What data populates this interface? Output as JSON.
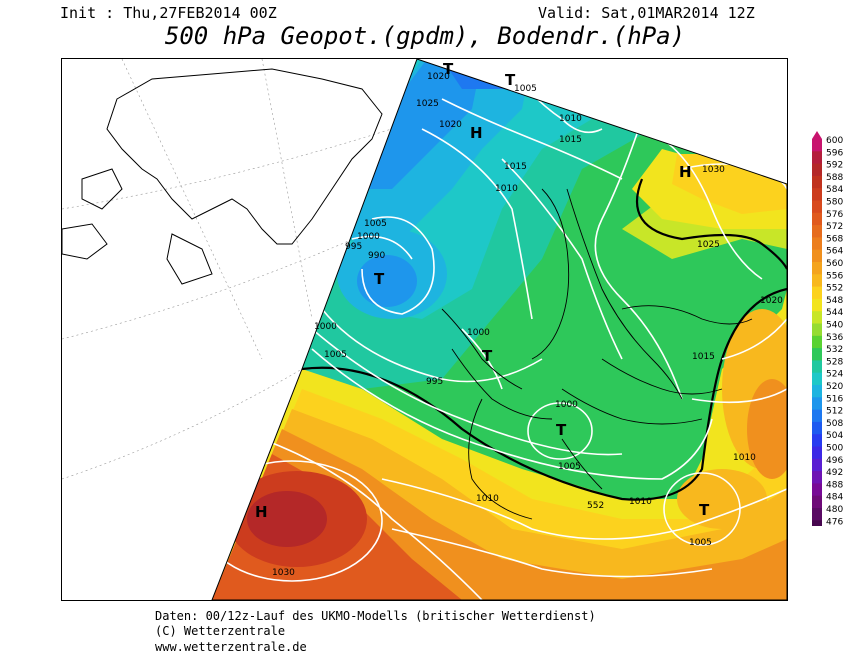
{
  "header": {
    "init": "Init : Thu,27FEB2014 00Z",
    "valid": "Valid: Sat,01MAR2014 12Z",
    "title": "500 hPa Geopot.(gpdm), Bodendr.(hPa)"
  },
  "footer": {
    "line1": "Daten: 00/12z-Lauf des UKMO-Modells (britischer Wetterdienst)",
    "line2": "(C) Wetterzentrale",
    "line3": "www.wetterzentrale.de"
  },
  "legend": {
    "levels": [
      "600",
      "596",
      "592",
      "588",
      "584",
      "580",
      "576",
      "572",
      "568",
      "564",
      "560",
      "556",
      "552",
      "548",
      "544",
      "540",
      "536",
      "532",
      "528",
      "524",
      "520",
      "516",
      "512",
      "508",
      "504",
      "500",
      "496",
      "492",
      "488",
      "484",
      "480",
      "476"
    ],
    "colors": [
      "#c8146e",
      "#b41e3c",
      "#b42828",
      "#c0321e",
      "#cc3c1e",
      "#d84a1e",
      "#e05a1e",
      "#e66c1e",
      "#ec7e1e",
      "#f0901e",
      "#f4a41e",
      "#f8b81e",
      "#fcd21e",
      "#f2e41e",
      "#c8e628",
      "#96dc32",
      "#5ad232",
      "#2ec85a",
      "#20c8a0",
      "#1ec8c8",
      "#1eb4e0",
      "#1e96ec",
      "#1e78f0",
      "#1e5af0",
      "#283cf0",
      "#3c28e6",
      "#5a1ed2",
      "#6e14b4",
      "#780a96",
      "#6e0a78",
      "#5a0a64",
      "#46064e"
    ]
  },
  "pressure_systems": [
    {
      "type": "H",
      "label": "H"
    },
    {
      "type": "H",
      "label": "H"
    },
    {
      "type": "H",
      "label": "H"
    },
    {
      "type": "T",
      "label": "T"
    },
    {
      "type": "T",
      "label": "T"
    },
    {
      "type": "T",
      "label": "T"
    },
    {
      "type": "T",
      "label": "T"
    },
    {
      "type": "T",
      "label": "T"
    },
    {
      "type": "T",
      "label": "T"
    }
  ],
  "isobar_labels": [
    "1020",
    "1005",
    "1025",
    "1020",
    "1010",
    "1015",
    "1015",
    "1010",
    "1030",
    "1005",
    "1000",
    "995",
    "990",
    "1025",
    "1020",
    "1000",
    "1000",
    "1005",
    "995",
    "1015",
    "1000",
    "1005",
    "1010",
    "1010",
    "1010",
    "1030",
    "1005",
    "552"
  ]
}
